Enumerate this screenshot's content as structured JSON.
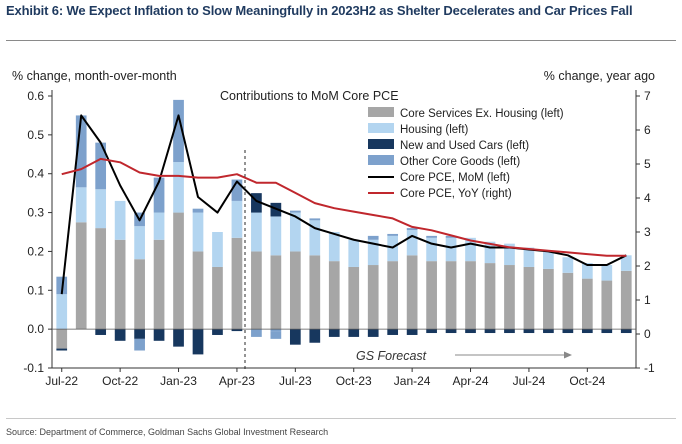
{
  "header": {
    "title": "Exhibit 6: We Expect Inflation to Slow Meaningfully in 2023H2 as Shelter Decelerates and Car Prices Fall"
  },
  "footer": {
    "source": "Source: Department of Commerce, Goldman Sachs Global Investment Research"
  },
  "chart_data": {
    "type": "bar",
    "stacked": true,
    "title": "Contributions to MoM Core PCE",
    "ylabel_left": "% change, month-over-month",
    "ylabel_right": "% change, year ago",
    "ylim_left": [
      -0.1,
      0.6
    ],
    "ylim_right": [
      -1,
      7
    ],
    "yticks_left": [
      "-0.1",
      "0.0",
      "0.1",
      "0.2",
      "0.3",
      "0.4",
      "0.5",
      "0.6"
    ],
    "yticks_right": [
      "-1",
      "0",
      "1",
      "2",
      "3",
      "4",
      "5",
      "6",
      "7"
    ],
    "xtick_labels": [
      "Jul-22",
      "Oct-22",
      "Jan-23",
      "Apr-23",
      "Jul-23",
      "Oct-23",
      "Jan-24",
      "Apr-24",
      "Jul-24",
      "Oct-24"
    ],
    "categories": [
      "Jul-22",
      "Aug-22",
      "Sep-22",
      "Oct-22",
      "Nov-22",
      "Dec-22",
      "Jan-23",
      "Feb-23",
      "Mar-23",
      "Apr-23",
      "May-23",
      "Jun-23",
      "Jul-23",
      "Aug-23",
      "Sep-23",
      "Oct-23",
      "Nov-23",
      "Dec-23",
      "Jan-24",
      "Feb-24",
      "Mar-24",
      "Apr-24",
      "May-24",
      "Jun-24",
      "Jul-24",
      "Aug-24",
      "Sep-24",
      "Oct-24",
      "Nov-24",
      "Dec-24"
    ],
    "series": [
      {
        "name": "Core Services Ex. Housing (left)",
        "kind": "bar",
        "color": "#a6a6a6",
        "values": [
          -0.05,
          0.275,
          0.26,
          0.23,
          0.18,
          0.23,
          0.3,
          0.2,
          0.16,
          0.235,
          0.2,
          0.19,
          0.2,
          0.19,
          0.175,
          0.16,
          0.165,
          0.175,
          0.19,
          0.175,
          0.175,
          0.175,
          0.17,
          0.165,
          0.16,
          0.155,
          0.145,
          0.13,
          0.125,
          0.15
        ]
      },
      {
        "name": "Housing (left)",
        "kind": "bar",
        "color": "#b3d5f0",
        "values": [
          0.09,
          0.09,
          0.1,
          0.1,
          0.085,
          0.07,
          0.13,
          0.1,
          0.09,
          0.095,
          0.1,
          0.1,
          0.1,
          0.09,
          0.075,
          0.07,
          0.065,
          0.065,
          0.065,
          0.06,
          0.06,
          0.06,
          0.055,
          0.055,
          0.05,
          0.045,
          0.04,
          0.04,
          0.04,
          0.04
        ]
      },
      {
        "name": "New and Used Cars (left)",
        "kind": "bar",
        "color": "#17375e",
        "values": [
          -0.005,
          0.0,
          -0.015,
          -0.03,
          -0.025,
          -0.03,
          -0.045,
          -0.065,
          -0.015,
          -0.005,
          0.05,
          0.035,
          -0.04,
          -0.035,
          -0.02,
          -0.02,
          -0.02,
          -0.015,
          -0.015,
          -0.01,
          -0.01,
          -0.01,
          -0.01,
          -0.01,
          -0.01,
          -0.01,
          -0.01,
          -0.01,
          -0.01,
          -0.01
        ]
      },
      {
        "name": "Other Core Goods (left)",
        "kind": "bar",
        "color": "#7da1cc",
        "values": [
          0.045,
          0.185,
          0.12,
          0.0,
          0.035,
          0.09,
          0.16,
          0.01,
          0.0,
          0.055,
          0.0,
          -0.005,
          0.005,
          0.005,
          0.0,
          0.0,
          0.01,
          0.005,
          0.005,
          0.005,
          0.005,
          0.0,
          0.0,
          0.0,
          0.0,
          0.0,
          0.0,
          0.0,
          0.0,
          0.0
        ],
        "negative_values": [
          0.0,
          0.0,
          0.0,
          0.0,
          -0.03,
          0.0,
          0.0,
          0.0,
          0.0,
          0.0,
          -0.02,
          -0.02,
          0.0,
          0.0,
          0.0,
          0.0,
          0.0,
          0.0,
          0.0,
          0.0,
          0.0,
          0.0,
          0.0,
          0.0,
          0.0,
          0.0,
          0.0,
          0.0,
          0.0,
          0.0
        ]
      },
      {
        "name": "Core PCE, MoM (left)",
        "kind": "line",
        "color": "#000000",
        "axis": "left",
        "values": [
          0.09,
          0.55,
          0.48,
          0.37,
          0.28,
          0.38,
          0.55,
          0.34,
          0.3,
          0.38,
          0.33,
          0.31,
          0.29,
          0.26,
          0.245,
          0.23,
          0.22,
          0.21,
          0.24,
          0.22,
          0.21,
          0.22,
          0.21,
          0.21,
          0.205,
          0.2,
          0.19,
          0.165,
          0.165,
          0.19
        ]
      },
      {
        "name": "Core PCE, YoY (right)",
        "kind": "line",
        "color": "#c0272d",
        "axis": "right",
        "values": [
          4.7,
          4.85,
          5.15,
          5.05,
          4.75,
          4.65,
          4.65,
          4.6,
          4.6,
          4.7,
          4.45,
          4.45,
          4.15,
          3.85,
          3.7,
          3.6,
          3.5,
          3.4,
          3.15,
          3.05,
          2.9,
          2.75,
          2.65,
          2.55,
          2.5,
          2.45,
          2.4,
          2.35,
          2.3,
          2.3
        ]
      }
    ],
    "forecast_annotation": "GS Forecast",
    "forecast_start": "Apr-23",
    "legend_position": "top-right",
    "grid": false
  }
}
